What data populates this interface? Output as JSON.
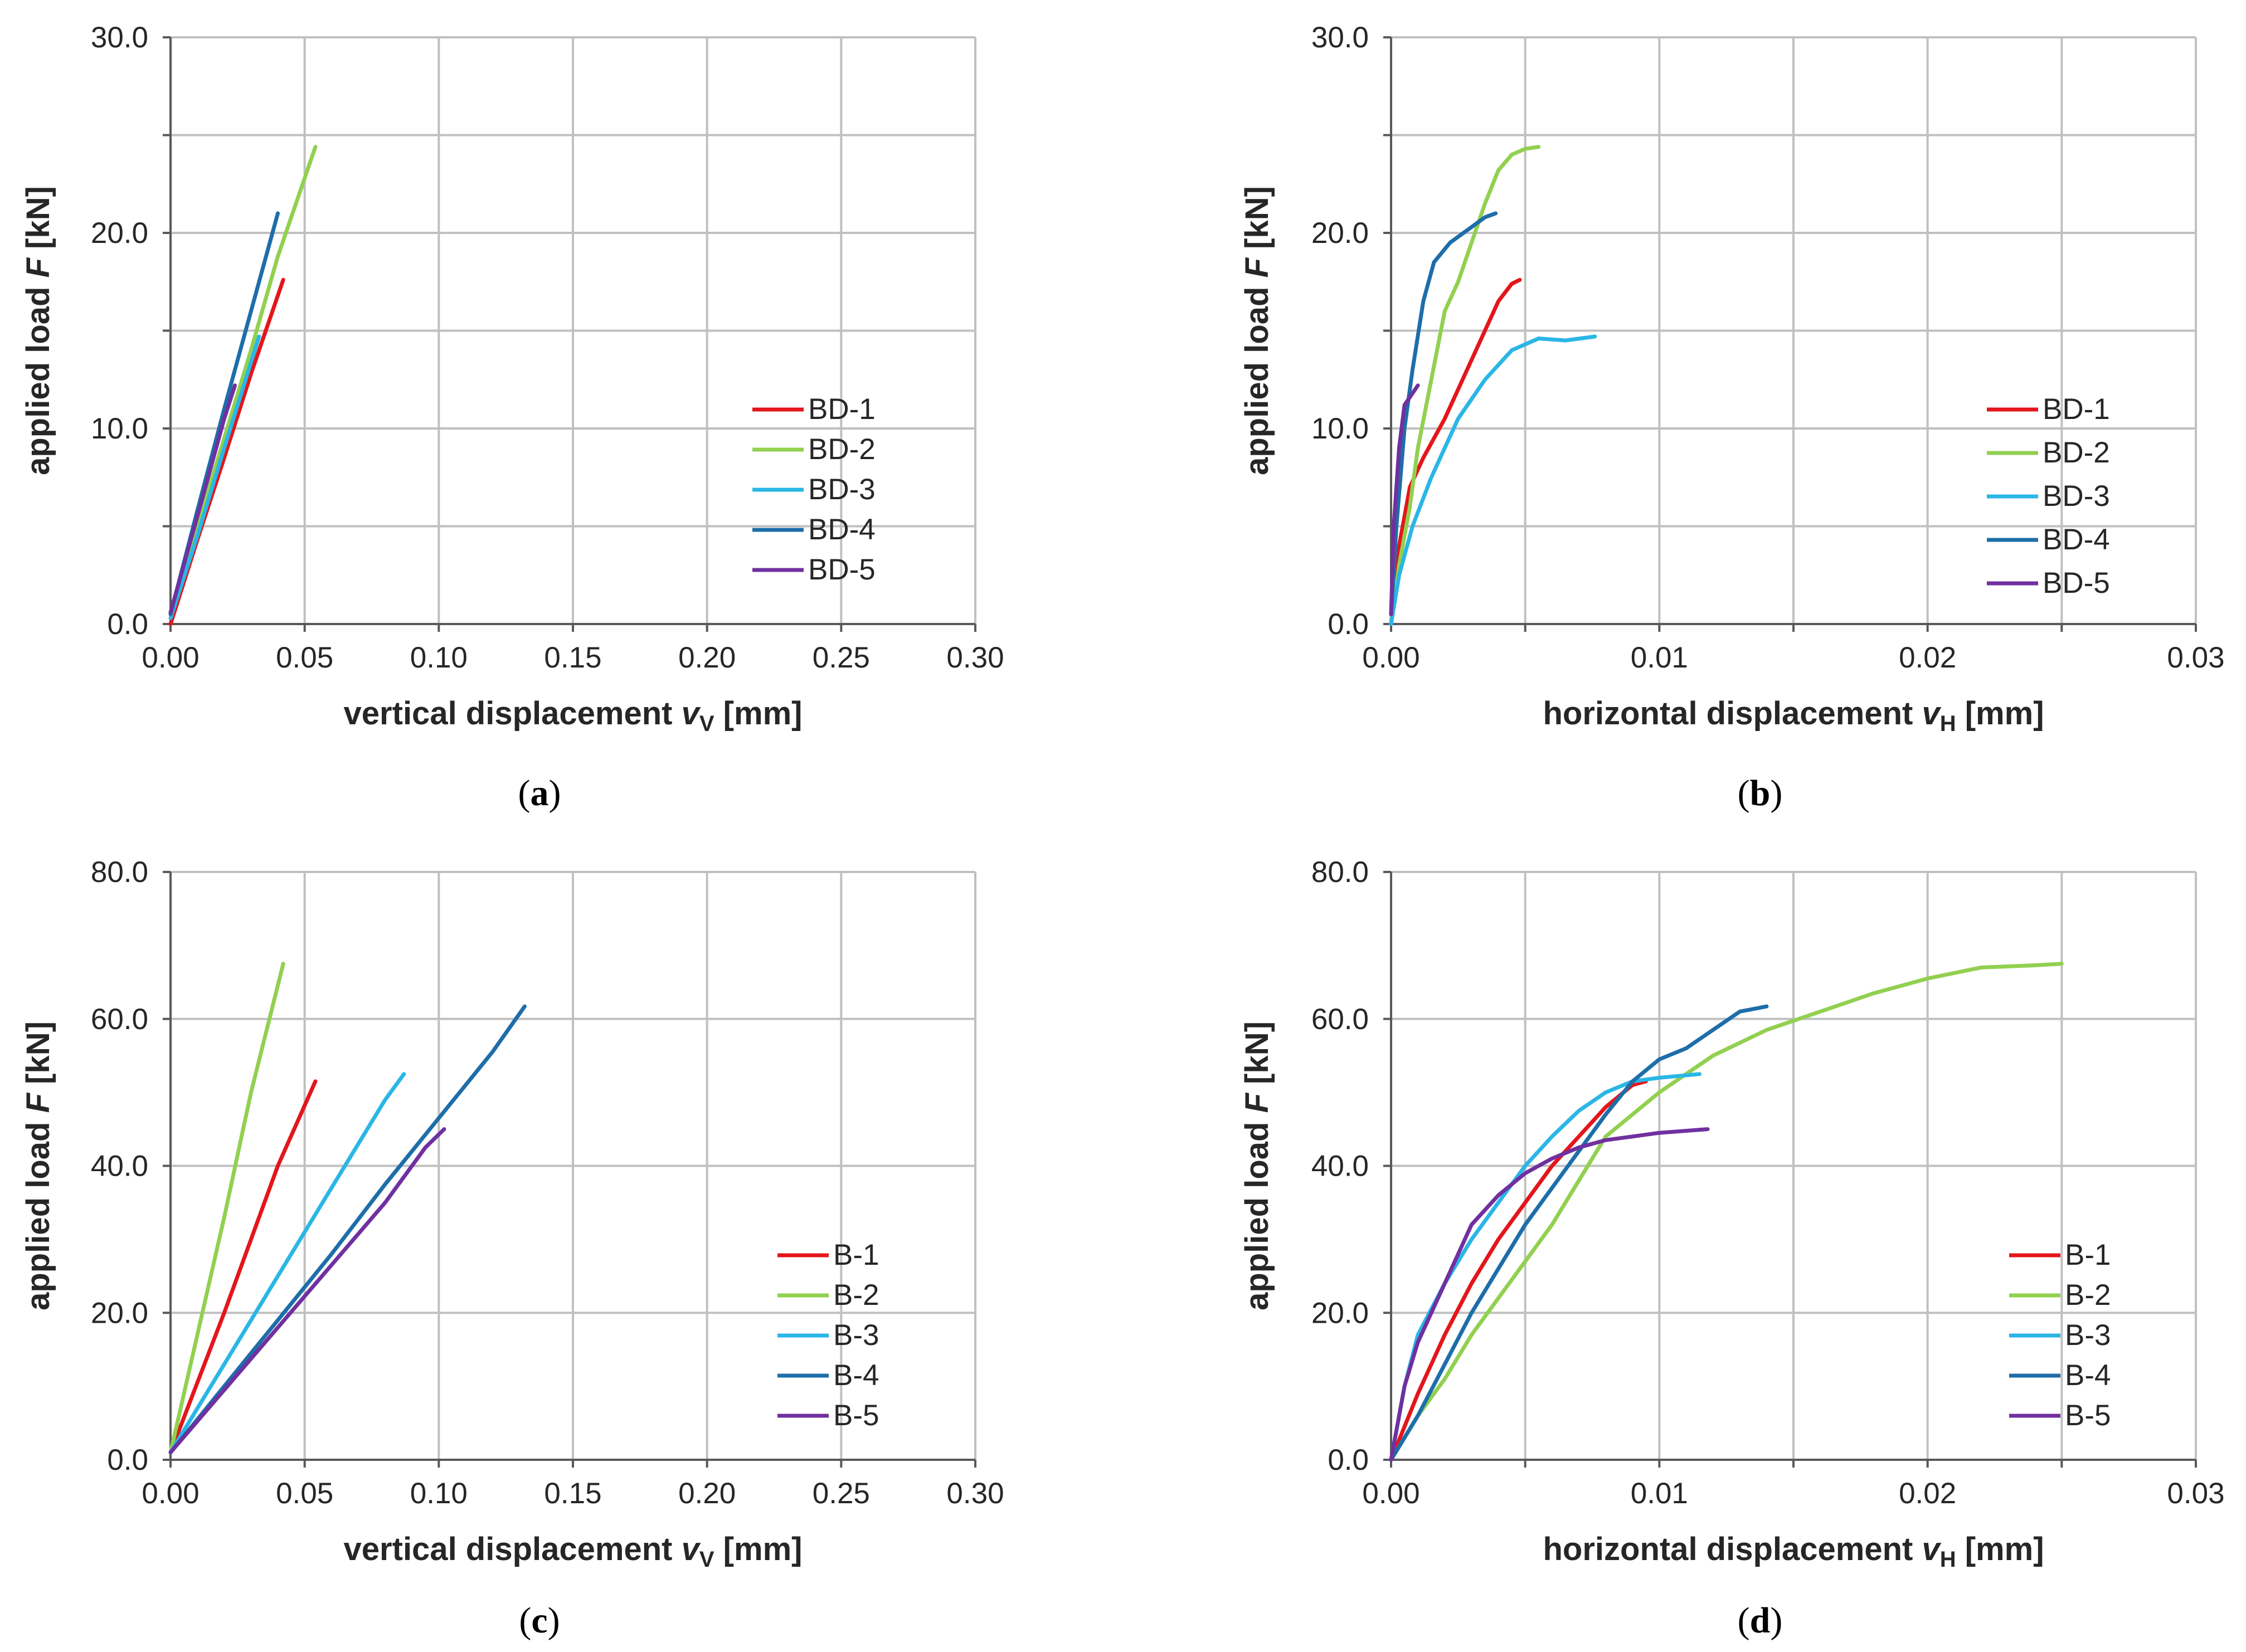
{
  "colors": {
    "s1": "#e3161b",
    "s2": "#92d050",
    "s3": "#2ab6e6",
    "s4": "#1d6ea9",
    "s5": "#7030a0"
  },
  "chart_data": [
    {
      "id": "a",
      "type": "line",
      "caption": "a",
      "ylabel_parts": [
        "applied load ",
        "F",
        " [kN]"
      ],
      "xlabel_parts": [
        "vertical displacement ",
        "v",
        "V",
        " [mm]"
      ],
      "xlim": [
        0,
        0.3
      ],
      "ylim": [
        0,
        30
      ],
      "xticks": [
        "0.00",
        "0.05",
        "0.10",
        "0.15",
        "0.20",
        "0.25",
        "0.30"
      ],
      "yticks": [
        "0.0",
        "10.0",
        "20.0",
        "30.0"
      ],
      "grid_x": [
        0,
        0.05,
        0.1,
        0.15,
        0.2,
        0.25,
        0.3
      ],
      "grid_y": [
        0,
        5,
        10,
        15,
        20,
        25,
        30
      ],
      "legend_position": "right",
      "series": [
        {
          "name": "BD-1",
          "color": "s1",
          "points": [
            [
              0,
              0
            ],
            [
              0.01,
              4.3
            ],
            [
              0.02,
              8.5
            ],
            [
              0.03,
              12.8
            ],
            [
              0.042,
              17.6
            ]
          ]
        },
        {
          "name": "BD-2",
          "color": "s2",
          "points": [
            [
              0,
              0.5
            ],
            [
              0.01,
              5
            ],
            [
              0.02,
              9.5
            ],
            [
              0.03,
              14
            ],
            [
              0.04,
              18.8
            ],
            [
              0.054,
              24.4
            ]
          ]
        },
        {
          "name": "BD-3",
          "color": "s3",
          "points": [
            [
              0,
              0.3
            ],
            [
              0.01,
              4.5
            ],
            [
              0.02,
              9
            ],
            [
              0.033,
              14.7
            ]
          ]
        },
        {
          "name": "BD-4",
          "color": "s4",
          "points": [
            [
              0,
              0.5
            ],
            [
              0.01,
              5.8
            ],
            [
              0.02,
              11
            ],
            [
              0.03,
              16
            ],
            [
              0.04,
              21
            ]
          ]
        },
        {
          "name": "BD-5",
          "color": "s5",
          "points": [
            [
              0,
              0.6
            ],
            [
              0.01,
              5.5
            ],
            [
              0.02,
              10.5
            ],
            [
              0.024,
              12.2
            ]
          ]
        }
      ]
    },
    {
      "id": "b",
      "type": "line",
      "caption": "b",
      "ylabel_parts": [
        "applied load ",
        "F",
        " [kN]"
      ],
      "xlabel_parts": [
        "horizontal displacement  ",
        "v",
        "H",
        " [mm]"
      ],
      "xlim": [
        0,
        0.03
      ],
      "ylim": [
        0,
        30
      ],
      "xticks": [
        "0.00",
        "0.01",
        "0.02",
        "0.03"
      ],
      "yticks": [
        "0.0",
        "10.0",
        "20.0",
        "30.0"
      ],
      "grid_x": [
        0,
        0.005,
        0.01,
        0.015,
        0.02,
        0.025,
        0.03
      ],
      "grid_y": [
        0,
        5,
        10,
        15,
        20,
        25,
        30
      ],
      "legend_position": "right",
      "series": [
        {
          "name": "BD-1",
          "color": "s1",
          "points": [
            [
              0,
              0
            ],
            [
              0.0003,
              4
            ],
            [
              0.0007,
              7
            ],
            [
              0.0012,
              8.5
            ],
            [
              0.002,
              10.5
            ],
            [
              0.003,
              13.5
            ],
            [
              0.004,
              16.5
            ],
            [
              0.0045,
              17.4
            ],
            [
              0.0048,
              17.6
            ]
          ]
        },
        {
          "name": "BD-2",
          "color": "s2",
          "points": [
            [
              0,
              0
            ],
            [
              0.0003,
              3
            ],
            [
              0.0007,
              6
            ],
            [
              0.001,
              9
            ],
            [
              0.0015,
              12.5
            ],
            [
              0.002,
              16
            ],
            [
              0.0025,
              17.5
            ],
            [
              0.003,
              19.5
            ],
            [
              0.0035,
              21.5
            ],
            [
              0.004,
              23.2
            ],
            [
              0.0045,
              24
            ],
            [
              0.005,
              24.3
            ],
            [
              0.0055,
              24.4
            ]
          ]
        },
        {
          "name": "BD-3",
          "color": "s3",
          "points": [
            [
              0,
              0
            ],
            [
              0.0003,
              2.5
            ],
            [
              0.0008,
              5
            ],
            [
              0.0015,
              7.5
            ],
            [
              0.0025,
              10.5
            ],
            [
              0.0035,
              12.5
            ],
            [
              0.0045,
              14
            ],
            [
              0.0055,
              14.6
            ],
            [
              0.0065,
              14.5
            ],
            [
              0.0076,
              14.7
            ]
          ]
        },
        {
          "name": "BD-4",
          "color": "s4",
          "points": [
            [
              0,
              0.5
            ],
            [
              0.0002,
              5
            ],
            [
              0.0005,
              10
            ],
            [
              0.0008,
              13
            ],
            [
              0.0012,
              16.5
            ],
            [
              0.0016,
              18.5
            ],
            [
              0.0022,
              19.5
            ],
            [
              0.003,
              20.3
            ],
            [
              0.0035,
              20.8
            ],
            [
              0.0039,
              21
            ]
          ]
        },
        {
          "name": "BD-5",
          "color": "s5",
          "points": [
            [
              0,
              0.5
            ],
            [
              0.0001,
              5
            ],
            [
              0.0003,
              9
            ],
            [
              0.0005,
              11.2
            ],
            [
              0.0008,
              11.8
            ],
            [
              0.001,
              12.2
            ]
          ]
        }
      ]
    },
    {
      "id": "c",
      "type": "line",
      "caption": "c",
      "ylabel_parts": [
        "applied load ",
        "F",
        " [kN]"
      ],
      "xlabel_parts": [
        "vertical displacement ",
        "v",
        "V",
        " [mm]"
      ],
      "xlim": [
        0,
        0.3
      ],
      "ylim": [
        0,
        80
      ],
      "xticks": [
        "0.00",
        "0.05",
        "0.10",
        "0.15",
        "0.20",
        "0.25",
        "0.30"
      ],
      "yticks": [
        "0.0",
        "20.0",
        "40.0",
        "60.0",
        "80.0"
      ],
      "grid_x": [
        0,
        0.05,
        0.1,
        0.15,
        0.2,
        0.25,
        0.3
      ],
      "grid_y": [
        0,
        20,
        40,
        60,
        80
      ],
      "legend_position": "right",
      "series": [
        {
          "name": "B-1",
          "color": "s1",
          "points": [
            [
              0,
              1
            ],
            [
              0.01,
              10.5
            ],
            [
              0.02,
              20
            ],
            [
              0.03,
              30
            ],
            [
              0.04,
              40
            ],
            [
              0.054,
              51.5
            ]
          ]
        },
        {
          "name": "B-2",
          "color": "s2",
          "points": [
            [
              0,
              1
            ],
            [
              0.01,
              17
            ],
            [
              0.02,
              33
            ],
            [
              0.03,
              50
            ],
            [
              0.042,
              67.5
            ]
          ]
        },
        {
          "name": "B-3",
          "color": "s3",
          "points": [
            [
              0,
              1
            ],
            [
              0.02,
              13
            ],
            [
              0.04,
              25
            ],
            [
              0.06,
              37
            ],
            [
              0.08,
              49
            ],
            [
              0.087,
              52.5
            ]
          ]
        },
        {
          "name": "B-4",
          "color": "s4",
          "points": [
            [
              0,
              1
            ],
            [
              0.02,
              10
            ],
            [
              0.04,
              19
            ],
            [
              0.06,
              28
            ],
            [
              0.08,
              37.5
            ],
            [
              0.1,
              46.5
            ],
            [
              0.12,
              55.5
            ],
            [
              0.132,
              61.7
            ]
          ]
        },
        {
          "name": "B-5",
          "color": "s5",
          "points": [
            [
              0,
              1
            ],
            [
              0.02,
              9.5
            ],
            [
              0.04,
              18
            ],
            [
              0.06,
              26.5
            ],
            [
              0.08,
              35
            ],
            [
              0.095,
              42.5
            ],
            [
              0.102,
              45
            ]
          ]
        }
      ]
    },
    {
      "id": "d",
      "type": "line",
      "caption": "d",
      "ylabel_parts": [
        "applied load ",
        "F",
        " [kN]"
      ],
      "xlabel_parts": [
        "horizontal displacement ",
        "v",
        "H",
        " [mm]"
      ],
      "xlim": [
        0,
        0.03
      ],
      "ylim": [
        0,
        80
      ],
      "xticks": [
        "0.00",
        "0.01",
        "0.02",
        "0.03"
      ],
      "yticks": [
        "0.0",
        "20.0",
        "40.0",
        "60.0",
        "80.0"
      ],
      "grid_x": [
        0,
        0.005,
        0.01,
        0.015,
        0.02,
        0.025,
        0.03
      ],
      "grid_y": [
        0,
        20,
        40,
        60,
        80
      ],
      "legend_position": "right",
      "series": [
        {
          "name": "B-1",
          "color": "s1",
          "points": [
            [
              0,
              0
            ],
            [
              0.001,
              9
            ],
            [
              0.002,
              17
            ],
            [
              0.003,
              24
            ],
            [
              0.004,
              30
            ],
            [
              0.005,
              35
            ],
            [
              0.006,
              40
            ],
            [
              0.007,
              44
            ],
            [
              0.008,
              48
            ],
            [
              0.009,
              51
            ],
            [
              0.0095,
              51.5
            ]
          ]
        },
        {
          "name": "B-2",
          "color": "s2",
          "points": [
            [
              0,
              0
            ],
            [
              0.001,
              6
            ],
            [
              0.002,
              11
            ],
            [
              0.003,
              17
            ],
            [
              0.004,
              22
            ],
            [
              0.005,
              27
            ],
            [
              0.006,
              32
            ],
            [
              0.007,
              38
            ],
            [
              0.008,
              44
            ],
            [
              0.01,
              50
            ],
            [
              0.012,
              55
            ],
            [
              0.014,
              58.5
            ],
            [
              0.016,
              61
            ],
            [
              0.018,
              63.5
            ],
            [
              0.02,
              65.5
            ],
            [
              0.022,
              67
            ],
            [
              0.024,
              67.3
            ],
            [
              0.025,
              67.5
            ]
          ]
        },
        {
          "name": "B-3",
          "color": "s3",
          "points": [
            [
              0,
              0
            ],
            [
              0.0005,
              10
            ],
            [
              0.001,
              17
            ],
            [
              0.002,
              24
            ],
            [
              0.003,
              30
            ],
            [
              0.004,
              35
            ],
            [
              0.005,
              40
            ],
            [
              0.006,
              44
            ],
            [
              0.007,
              47.5
            ],
            [
              0.008,
              50
            ],
            [
              0.009,
              51.5
            ],
            [
              0.01,
              52
            ],
            [
              0.0115,
              52.5
            ]
          ]
        },
        {
          "name": "B-4",
          "color": "s4",
          "points": [
            [
              0,
              0
            ],
            [
              0.001,
              6
            ],
            [
              0.002,
              13
            ],
            [
              0.003,
              20
            ],
            [
              0.004,
              26
            ],
            [
              0.005,
              32
            ],
            [
              0.006,
              37
            ],
            [
              0.007,
              42
            ],
            [
              0.008,
              47
            ],
            [
              0.009,
              51.5
            ],
            [
              0.01,
              54.5
            ],
            [
              0.011,
              56
            ],
            [
              0.012,
              58.5
            ],
            [
              0.013,
              61
            ],
            [
              0.014,
              61.7
            ]
          ]
        },
        {
          "name": "B-5",
          "color": "s5",
          "points": [
            [
              0,
              0
            ],
            [
              0.0005,
              10
            ],
            [
              0.001,
              16
            ],
            [
              0.002,
              24
            ],
            [
              0.003,
              32
            ],
            [
              0.004,
              36
            ],
            [
              0.005,
              39
            ],
            [
              0.006,
              41
            ],
            [
              0.007,
              42.5
            ],
            [
              0.008,
              43.5
            ],
            [
              0.009,
              44
            ],
            [
              0.01,
              44.5
            ],
            [
              0.0118,
              45
            ]
          ]
        }
      ]
    }
  ]
}
